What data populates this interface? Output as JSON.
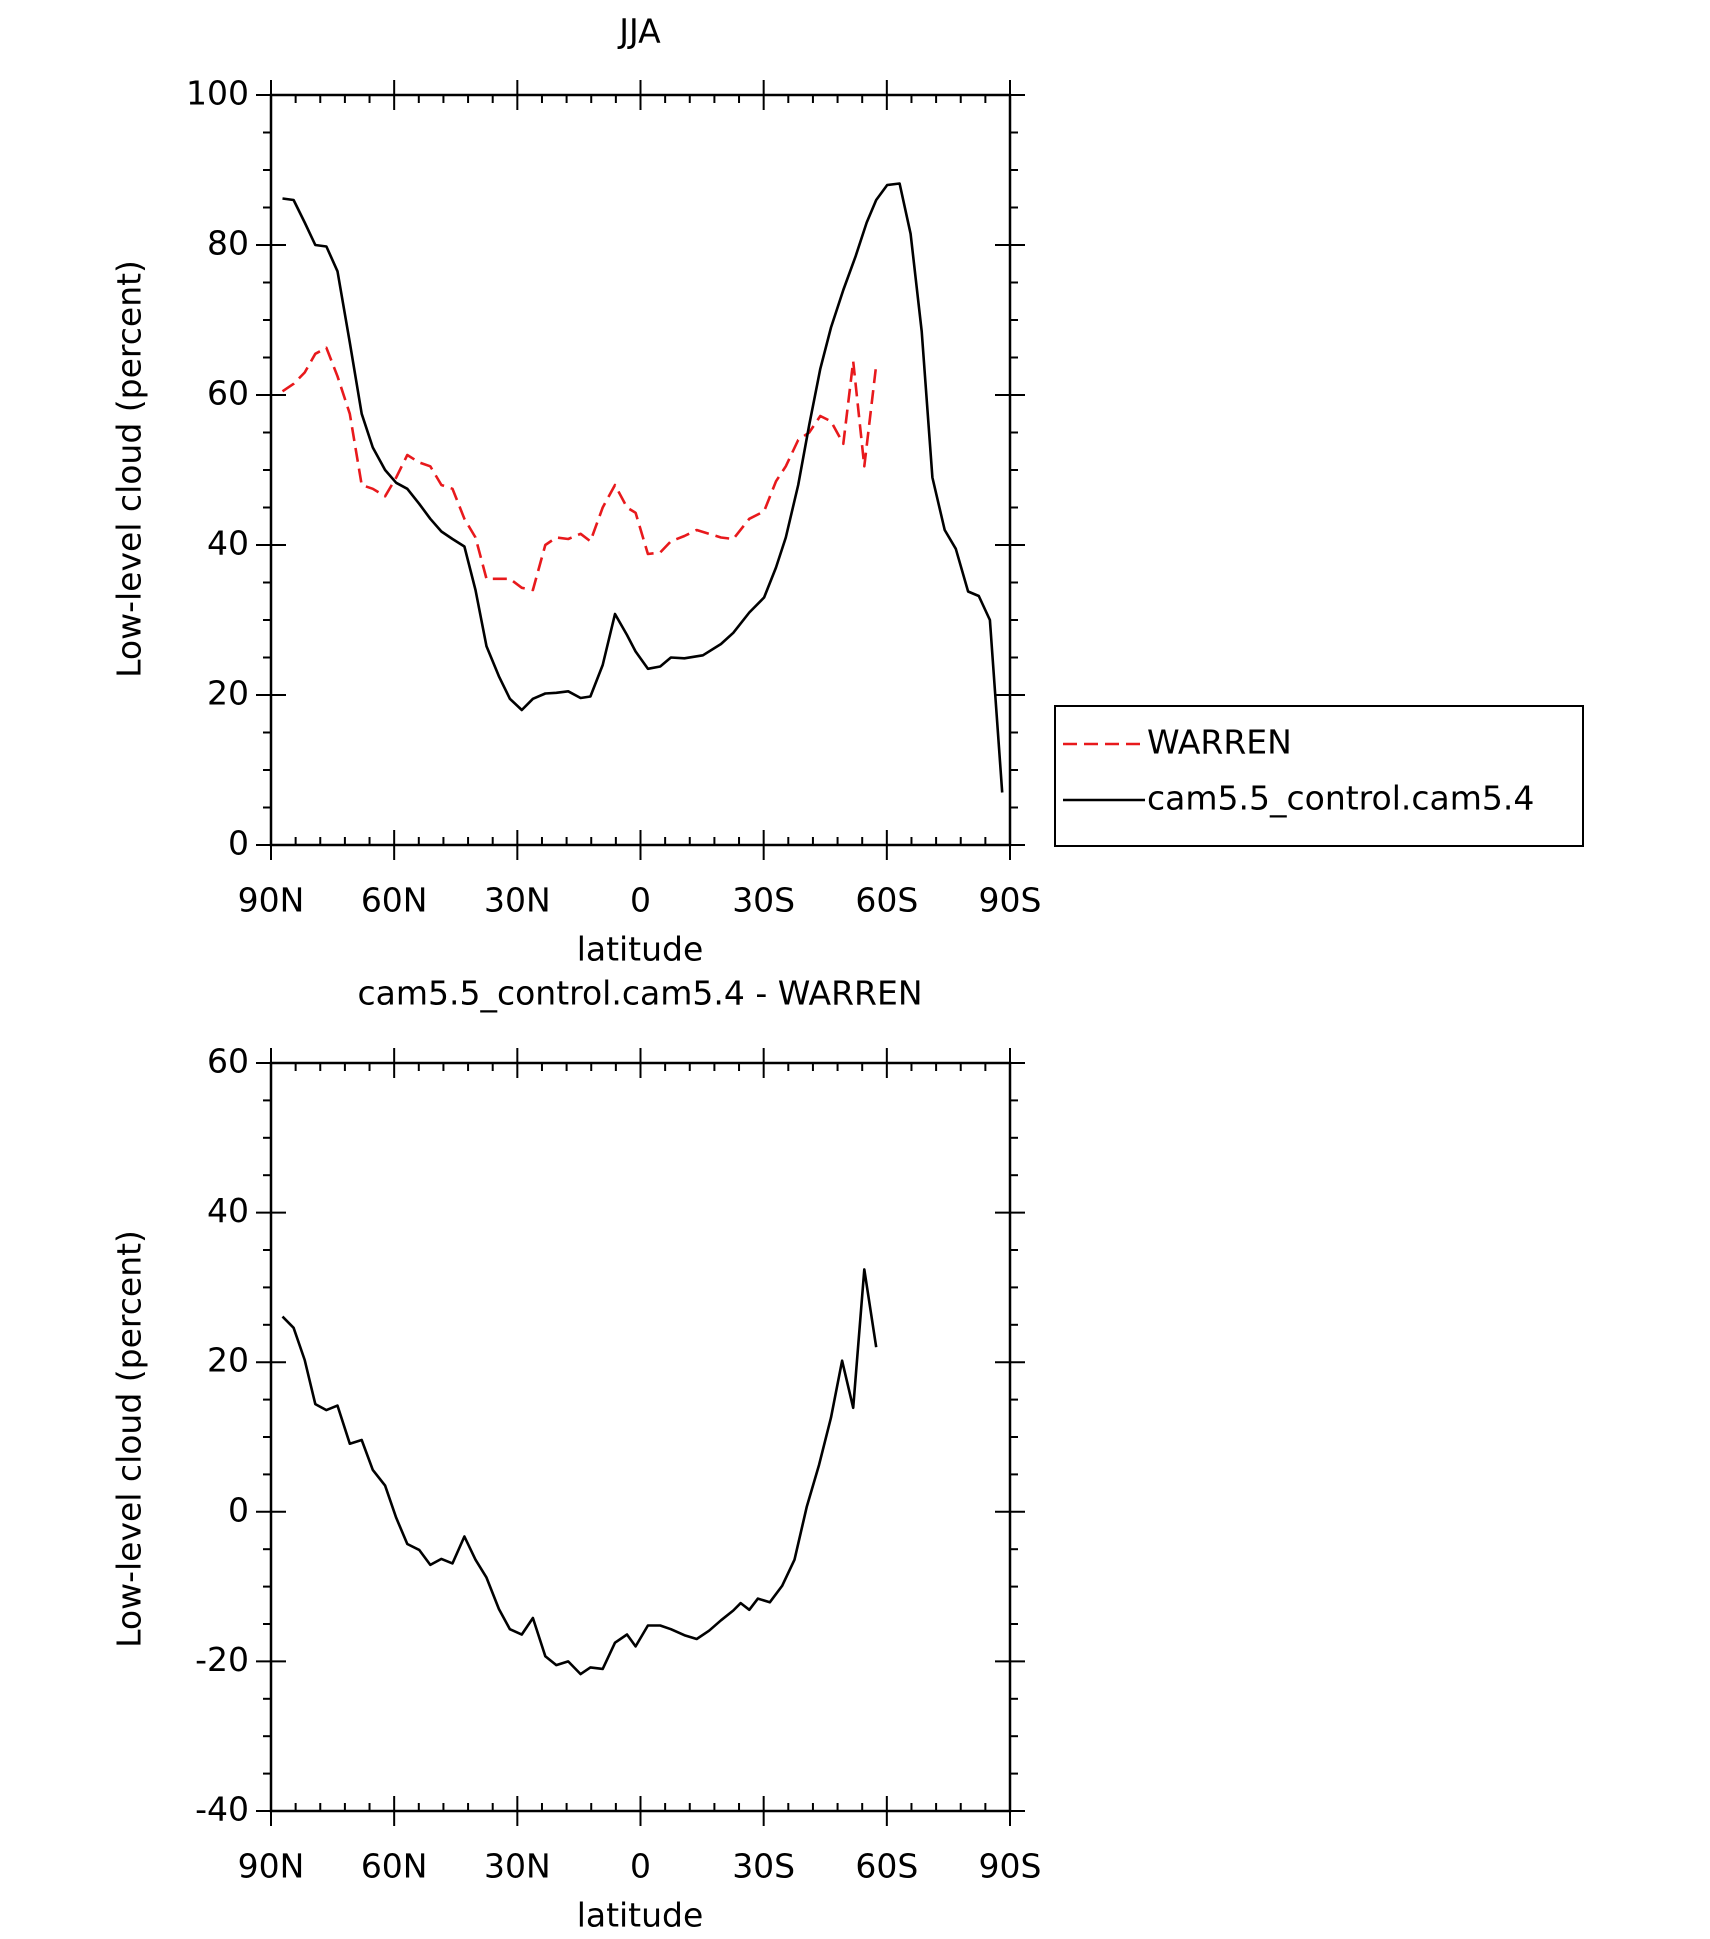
{
  "chart_data": [
    {
      "type": "line",
      "title": "JJA",
      "x_label": "latitude",
      "y_label": "Low-level cloud (percent)",
      "xlim": [
        90,
        -90
      ],
      "xticks": [
        {
          "value": 90,
          "label": "90N"
        },
        {
          "value": 60,
          "label": "60N"
        },
        {
          "value": 30,
          "label": "30N"
        },
        0,
        {
          "value": -30,
          "label": "30S"
        },
        {
          "value": -60,
          "label": "60S"
        },
        {
          "value": -90,
          "label": "90S"
        }
      ],
      "ylim": [
        0,
        100
      ],
      "yticks": [
        0,
        20,
        40,
        60,
        80,
        100
      ],
      "series": [
        {
          "name": "WARREN",
          "color": "#e8191c",
          "line_style": "dashed",
          "x": [
            87.2,
            84.5,
            81.8,
            79.2,
            76.5,
            73.8,
            70.8,
            67.9,
            65.2,
            62.2,
            59.5,
            56.8,
            53.9,
            51.2,
            48.5,
            45.8,
            42.9,
            40.2,
            37.5,
            34.5,
            31.8,
            28.9,
            26.2,
            23.2,
            20.5,
            17.6,
            14.6,
            12.2,
            9.2,
            6.2,
            3.3,
            1.2,
            -1.8,
            -4.8,
            -7.4,
            -10.7,
            -13.7,
            -16.7,
            -19.6,
            -22.6,
            -26.5,
            -30.1,
            -33,
            -35.4,
            -38.4,
            -41.1,
            -43.8,
            -46.4,
            -49.4,
            -51.8,
            -54.5,
            -57.4
          ],
          "values": [
            60.5,
            61.5,
            63,
            65.5,
            66.3,
            62.5,
            57.5,
            48,
            47.5,
            46.5,
            49,
            52,
            51,
            50.5,
            48,
            47.5,
            43.5,
            41,
            35.5,
            35.5,
            35.5,
            34.3,
            34,
            40,
            41,
            40.8,
            41.5,
            40.5,
            45,
            48,
            45,
            44.3,
            38.8,
            39,
            40.5,
            41.2,
            42,
            41.5,
            41,
            40.8,
            43.5,
            44.5,
            48.5,
            50.5,
            54,
            55,
            57.2,
            56.5,
            53.5,
            64.5,
            50.5,
            64
          ]
        },
        {
          "name": "cam5.5_control.cam5.4",
          "color": "#000000",
          "line_style": "solid",
          "x": [
            87.2,
            84.5,
            81.8,
            79.2,
            76.5,
            73.8,
            70.8,
            67.9,
            65.2,
            62.2,
            59.5,
            56.8,
            53.9,
            51.2,
            48.5,
            45.8,
            42.9,
            40.2,
            37.5,
            34.5,
            31.8,
            28.9,
            26.2,
            23.2,
            20.5,
            17.6,
            14.6,
            12.2,
            9.2,
            6.2,
            3.3,
            1.2,
            -1.8,
            -4.8,
            -7.4,
            -10.7,
            -15.2,
            -19.6,
            -22.6,
            -26.5,
            -30.1,
            -33,
            -35.4,
            -38.4,
            -41.1,
            -43.8,
            -46.4,
            -49.4,
            -52.4,
            -55.1,
            -57.4,
            -60.1,
            -63.1,
            -65.8,
            -68.5,
            -71.1,
            -74.1,
            -76.8,
            -79.8,
            -82.4,
            -85.1,
            -88.1
          ],
          "values": [
            86.2,
            86,
            83,
            80,
            79.8,
            76.5,
            67,
            57.5,
            53,
            50,
            48.3,
            47.5,
            45.5,
            43.5,
            41.8,
            40.8,
            39.8,
            34,
            26.5,
            22.5,
            19.5,
            18,
            19.5,
            20.2,
            20.3,
            20.5,
            19.6,
            19.8,
            24,
            30.8,
            28,
            25.8,
            23.5,
            23.8,
            25,
            24.9,
            25.3,
            26.8,
            28.3,
            31,
            33,
            37,
            41,
            48,
            56,
            63.5,
            69,
            74,
            78.5,
            83,
            86,
            88,
            88.2,
            81.5,
            68.5,
            49,
            42,
            39.5,
            33.8,
            33.2,
            30,
            7
          ]
        }
      ]
    },
    {
      "type": "line",
      "title": "cam5.5_control.cam5.4 - WARREN",
      "x_label": "latitude",
      "y_label": "Low-level cloud (percent)",
      "xlim": [
        90,
        -90
      ],
      "xticks": [
        {
          "value": 90,
          "label": "90N"
        },
        {
          "value": 60,
          "label": "60N"
        },
        {
          "value": 30,
          "label": "30N"
        },
        0,
        {
          "value": -30,
          "label": "30S"
        },
        {
          "value": -60,
          "label": "60S"
        },
        {
          "value": -90,
          "label": "90S"
        }
      ],
      "ylim": [
        -40,
        60
      ],
      "yticks": [
        -40,
        -20,
        0,
        20,
        40,
        60
      ],
      "series": [
        {
          "color": "#000000",
          "line_style": "solid",
          "x": [
            87.2,
            84.5,
            81.8,
            79.2,
            76.5,
            73.8,
            70.8,
            67.9,
            65.2,
            62.2,
            59.5,
            56.8,
            53.9,
            51.2,
            48.5,
            45.8,
            42.9,
            40.2,
            37.5,
            34.5,
            31.8,
            28.9,
            26.2,
            23.2,
            20.5,
            17.6,
            14.6,
            12.2,
            9.2,
            6.2,
            3.3,
            1.2,
            -1.8,
            -4.8,
            -7.4,
            -10.7,
            -13.7,
            -16.7,
            -19.6,
            -22.6,
            -24.4,
            -26.5,
            -28.6,
            -31.5,
            -34.5,
            -37.5,
            -40.5,
            -43.5,
            -46.4,
            -49.1,
            -51.8,
            -54.5,
            -57.4
          ],
          "values": [
            26.1,
            24.6,
            20.3,
            14.4,
            13.6,
            14.2,
            9.1,
            9.6,
            5.6,
            3.5,
            -0.8,
            -4.3,
            -5.1,
            -7.1,
            -6.3,
            -6.9,
            -3.3,
            -6.4,
            -8.8,
            -13,
            -15.7,
            -16.4,
            -14.2,
            -19.3,
            -20.5,
            -20,
            -21.7,
            -20.8,
            -21,
            -17.5,
            -16.4,
            -18,
            -15.2,
            -15.2,
            -15.7,
            -16.5,
            -17,
            -15.9,
            -14.5,
            -13.2,
            -12.2,
            -13.1,
            -11.6,
            -12.1,
            -9.9,
            -6.4,
            0.7,
            6.3,
            12.6,
            20.2,
            13.9,
            32.4,
            22
          ]
        }
      ]
    }
  ]
}
